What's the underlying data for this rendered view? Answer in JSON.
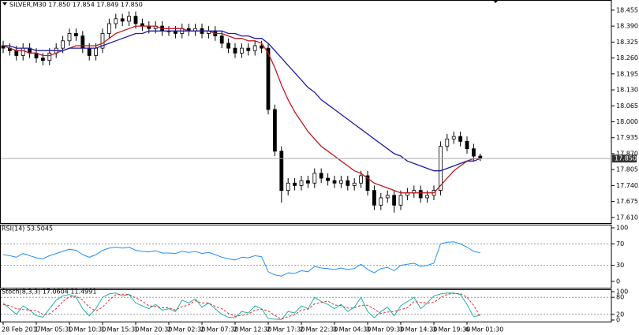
{
  "chart_data": [
    {
      "type": "candlestick",
      "title": "SILVER,M30 17.850 17.854 17.849 17.850",
      "categories": [
        "28 Feb 2017",
        null,
        null,
        null,
        null,
        "1 Mar 05:30",
        null,
        null,
        null,
        null,
        "1 Mar 10:30",
        null,
        null,
        null,
        null,
        "1 Mar 15:30",
        null,
        null,
        null,
        null,
        "1 Mar 20:30",
        null,
        null,
        null,
        null,
        "2 Mar 02:30",
        null,
        null,
        null,
        null,
        "2 Mar 07:30",
        null,
        null,
        null,
        null,
        "2 Mar 12:30",
        null,
        null,
        null,
        null,
        "2 Mar 17:30",
        null,
        null,
        null,
        null,
        "2 Mar 22:30",
        null,
        null,
        null,
        null,
        "3 Mar 04:30",
        null,
        null,
        null,
        null,
        "3 Mar 09:30",
        null,
        null,
        null,
        null,
        "3 Mar 14:30",
        null,
        null,
        null,
        null,
        "3 Mar 19:30",
        null,
        null,
        null,
        null,
        "6 Mar 01:30",
        null,
        null
      ],
      "open": [
        18.31,
        18.3,
        18.29,
        18.27,
        18.3,
        18.28,
        18.26,
        18.25,
        18.28,
        18.3,
        18.33,
        18.36,
        18.35,
        18.3,
        18.27,
        18.3,
        18.36,
        18.4,
        18.42,
        18.41,
        18.43,
        18.4,
        18.39,
        18.38,
        18.39,
        18.37,
        18.37,
        18.36,
        18.38,
        18.37,
        18.38,
        18.36,
        18.37,
        18.35,
        18.32,
        18.3,
        18.28,
        18.3,
        18.29,
        18.31,
        18.3,
        18.05,
        17.88,
        17.72,
        17.75,
        17.74,
        17.76,
        17.75,
        17.79,
        17.77,
        17.76,
        17.75,
        17.76,
        17.74,
        17.75,
        17.78,
        17.72,
        17.66,
        17.69,
        17.7,
        17.66,
        17.7,
        17.71,
        17.72,
        17.69,
        17.7,
        17.72,
        17.9,
        17.93,
        17.94,
        17.92,
        17.89,
        17.86
      ],
      "high": [
        18.33,
        18.32,
        18.31,
        18.32,
        18.32,
        18.3,
        18.28,
        18.3,
        18.32,
        18.35,
        18.38,
        18.38,
        18.37,
        18.32,
        18.32,
        18.38,
        18.42,
        18.44,
        18.44,
        18.45,
        18.45,
        18.42,
        18.41,
        18.41,
        18.41,
        18.39,
        18.39,
        18.4,
        18.4,
        18.4,
        18.4,
        18.39,
        18.39,
        18.37,
        18.34,
        18.32,
        18.32,
        18.32,
        18.33,
        18.33,
        18.32,
        18.07,
        17.9,
        17.77,
        17.77,
        17.78,
        17.78,
        17.81,
        17.81,
        17.79,
        17.78,
        17.78,
        17.78,
        17.77,
        17.8,
        17.8,
        17.74,
        17.71,
        17.72,
        17.72,
        17.72,
        17.73,
        17.74,
        17.74,
        17.72,
        17.74,
        17.92,
        17.95,
        17.96,
        17.96,
        17.94,
        17.91,
        17.87
      ],
      "low": [
        18.28,
        18.27,
        18.25,
        18.25,
        18.26,
        18.24,
        18.23,
        18.23,
        18.26,
        18.28,
        18.31,
        18.33,
        18.28,
        18.25,
        18.25,
        18.28,
        18.34,
        18.38,
        18.39,
        18.39,
        18.38,
        18.37,
        18.36,
        18.36,
        18.35,
        18.35,
        18.34,
        18.34,
        18.35,
        18.35,
        18.34,
        18.34,
        18.33,
        18.3,
        18.28,
        18.26,
        18.26,
        18.27,
        18.27,
        18.28,
        18.03,
        17.86,
        17.67,
        17.7,
        17.72,
        17.72,
        17.73,
        17.73,
        17.75,
        17.74,
        17.73,
        17.73,
        17.72,
        17.72,
        17.73,
        17.7,
        17.64,
        17.64,
        17.67,
        17.63,
        17.64,
        17.68,
        17.69,
        17.67,
        17.67,
        17.68,
        17.7,
        17.88,
        17.91,
        17.9,
        17.87,
        17.84,
        17.84
      ],
      "close": [
        18.3,
        18.29,
        18.27,
        18.3,
        18.28,
        18.26,
        18.25,
        18.28,
        18.3,
        18.33,
        18.36,
        18.35,
        18.3,
        18.27,
        18.3,
        18.36,
        18.4,
        18.42,
        18.41,
        18.43,
        18.4,
        18.39,
        18.38,
        18.39,
        18.37,
        18.37,
        18.36,
        18.38,
        18.37,
        18.38,
        18.36,
        18.37,
        18.35,
        18.32,
        18.3,
        18.28,
        18.3,
        18.29,
        18.31,
        18.3,
        18.05,
        17.88,
        17.72,
        17.75,
        17.74,
        17.76,
        17.75,
        17.79,
        17.77,
        17.76,
        17.75,
        17.76,
        17.74,
        17.75,
        17.78,
        17.72,
        17.66,
        17.69,
        17.7,
        17.66,
        17.7,
        17.71,
        17.72,
        17.69,
        17.7,
        17.72,
        17.9,
        17.93,
        17.94,
        17.92,
        17.89,
        17.86,
        17.85
      ],
      "series": [
        {
          "color": "#c0181b",
          "values": [
            18.31,
            18.3,
            18.29,
            18.29,
            18.28,
            18.28,
            18.27,
            18.27,
            18.28,
            18.29,
            18.3,
            18.31,
            18.31,
            18.31,
            18.31,
            18.32,
            18.34,
            18.36,
            18.37,
            18.38,
            18.39,
            18.39,
            18.39,
            18.39,
            18.38,
            18.38,
            18.38,
            18.38,
            18.37,
            18.37,
            18.37,
            18.37,
            18.36,
            18.36,
            18.35,
            18.34,
            18.34,
            18.33,
            18.33,
            18.32,
            18.28,
            18.22,
            18.15,
            18.09,
            18.04,
            18.0,
            17.96,
            17.93,
            17.9,
            17.88,
            17.86,
            17.84,
            17.82,
            17.8,
            17.79,
            17.77,
            17.75,
            17.74,
            17.73,
            17.72,
            17.71,
            17.71,
            17.71,
            17.71,
            17.71,
            17.71,
            17.74,
            17.77,
            17.8,
            17.82,
            17.84,
            17.85,
            17.85
          ]
        },
        {
          "color": "#1c1ca8",
          "values": [
            18.31,
            18.31,
            18.3,
            18.3,
            18.3,
            18.29,
            18.29,
            18.29,
            18.29,
            18.29,
            18.3,
            18.3,
            18.3,
            18.3,
            18.3,
            18.31,
            18.32,
            18.33,
            18.34,
            18.35,
            18.36,
            18.36,
            18.37,
            18.37,
            18.37,
            18.37,
            18.37,
            18.37,
            18.37,
            18.37,
            18.37,
            18.37,
            18.37,
            18.37,
            18.36,
            18.36,
            18.35,
            18.35,
            18.34,
            18.34,
            18.32,
            18.29,
            18.26,
            18.23,
            18.2,
            18.17,
            18.14,
            18.12,
            18.09,
            18.07,
            18.05,
            18.03,
            18.01,
            17.99,
            17.97,
            17.95,
            17.93,
            17.91,
            17.89,
            17.87,
            17.86,
            17.84,
            17.83,
            17.82,
            17.81,
            17.8,
            17.8,
            17.81,
            17.82,
            17.83,
            17.84,
            17.84,
            17.85
          ]
        }
      ],
      "last_price": {
        "value": 17.85,
        "label": "17.850"
      },
      "ylim": [
        17.587,
        18.49
      ],
      "yticks": [
        18.455,
        {
          "value": 18.39,
          "label": "18.390"
        },
        18.325,
        {
          "value": 18.26,
          "label": "18.260"
        },
        18.195,
        {
          "value": 18.13,
          "label": "18.130"
        },
        18.065,
        {
          "value": 18.0,
          "label": "18.000"
        },
        17.935,
        {
          "value": 17.87,
          "label": "17.870"
        },
        17.805,
        {
          "value": 17.74,
          "label": "17.740"
        },
        17.675,
        {
          "value": 17.61,
          "label": "17.610"
        }
      ]
    },
    {
      "type": "line",
      "title": "RSI(14) 53.5045",
      "series": [
        {
          "color": "#1e90ff",
          "values": [
            50,
            48,
            45,
            52,
            48,
            44,
            42,
            48,
            52,
            56,
            60,
            58,
            50,
            45,
            50,
            58,
            62,
            64,
            62,
            64,
            58,
            56,
            55,
            57,
            53,
            53,
            52,
            56,
            54,
            56,
            52,
            54,
            50,
            45,
            42,
            40,
            45,
            44,
            48,
            46,
            18,
            12,
            10,
            16,
            15,
            20,
            18,
            28,
            25,
            24,
            22,
            25,
            22,
            24,
            32,
            22,
            16,
            24,
            26,
            20,
            30,
            32,
            34,
            28,
            30,
            34,
            70,
            73,
            74,
            70,
            64,
            56,
            53.5045
          ]
        }
      ],
      "ylim": [
        0,
        100
      ],
      "yticks": [
        0,
        30,
        70,
        100
      ],
      "levels": [
        30,
        70
      ]
    },
    {
      "type": "line",
      "title": "Stoch(8,3,3) 17.0604 11.4991",
      "series": [
        {
          "color": "#20b2aa",
          "values": [
            60,
            40,
            20,
            50,
            35,
            15,
            10,
            40,
            70,
            85,
            90,
            80,
            40,
            15,
            40,
            80,
            92,
            95,
            85,
            90,
            60,
            50,
            40,
            55,
            35,
            40,
            30,
            70,
            60,
            75,
            45,
            60,
            40,
            20,
            10,
            8,
            30,
            25,
            50,
            40,
            5,
            3,
            2,
            30,
            25,
            50,
            40,
            80,
            65,
            55,
            40,
            55,
            30,
            45,
            80,
            30,
            8,
            30,
            45,
            15,
            50,
            65,
            80,
            40,
            60,
            85,
            92,
            95,
            95,
            90,
            55,
            12,
            17.0604
          ]
        },
        {
          "color": "#e0302a",
          "dash": true,
          "values": [
            55,
            50,
            40,
            37,
            35,
            33,
            20,
            22,
            40,
            65,
            82,
            85,
            70,
            45,
            32,
            45,
            70,
            89,
            91,
            90,
            78,
            67,
            50,
            48,
            43,
            43,
            35,
            47,
            53,
            68,
            60,
            60,
            48,
            40,
            23,
            13,
            16,
            21,
            35,
            38,
            32,
            16,
            3,
            12,
            19,
            35,
            38,
            57,
            62,
            67,
            53,
            50,
            42,
            43,
            52,
            52,
            39,
            23,
            28,
            30,
            37,
            43,
            65,
            62,
            60,
            62,
            79,
            91,
            94,
            93,
            80,
            52,
            11.4991
          ]
        }
      ],
      "ylim": [
        0,
        100
      ],
      "yticks": [
        0,
        20,
        80,
        100
      ],
      "levels": [
        20,
        80
      ]
    }
  ]
}
